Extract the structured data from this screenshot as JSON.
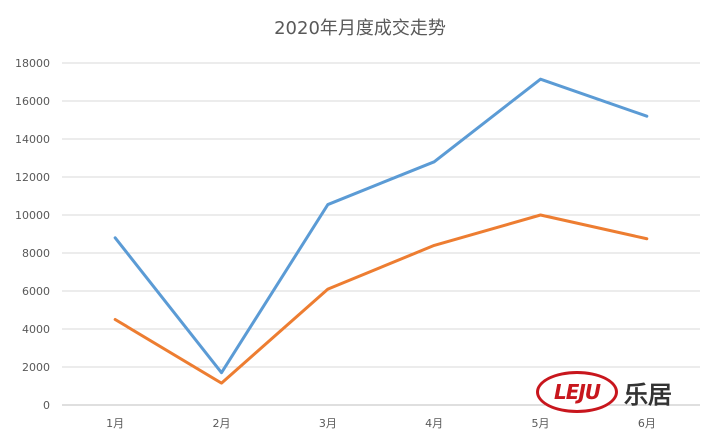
{
  "chart_data": {
    "type": "line",
    "title": "2020年月度成交走势",
    "categories": [
      "1月",
      "2月",
      "3月",
      "4月",
      "5月",
      "6月"
    ],
    "ylim": [
      0,
      18000
    ],
    "yticks": [
      0,
      2000,
      4000,
      6000,
      8000,
      10000,
      12000,
      14000,
      16000,
      18000
    ],
    "grid": true,
    "legend": "none",
    "series": [
      {
        "values": [
          8800,
          1700,
          10550,
          12800,
          17150,
          15200
        ],
        "color": "#5b9bd5"
      },
      {
        "values": [
          4500,
          1150,
          6100,
          8400,
          10000,
          8750
        ],
        "color": "#ed7d31"
      }
    ]
  },
  "watermark": {
    "logo_letters": "LEJU",
    "logo_cn": "乐居",
    "logo_color": "#c8161d"
  }
}
